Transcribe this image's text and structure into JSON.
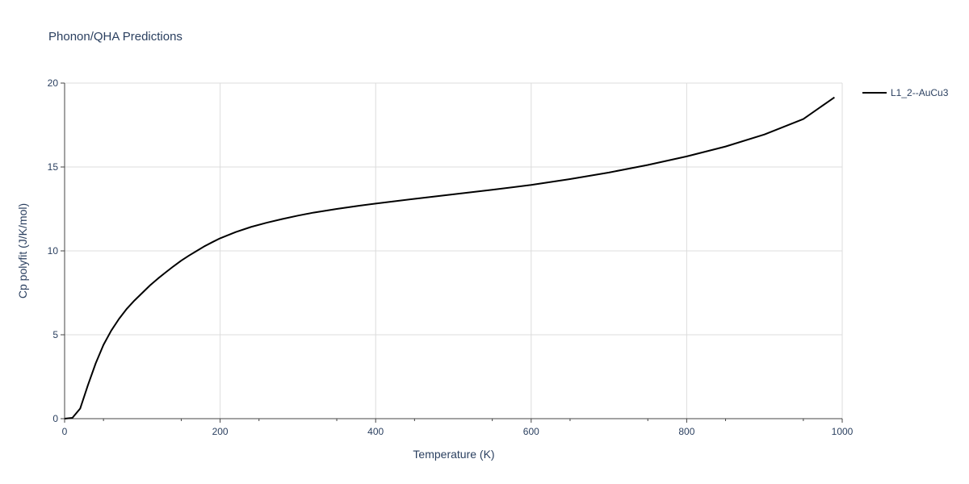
{
  "chart_data": {
    "type": "line",
    "title": "Phonon/QHA Predictions",
    "xlabel": "Temperature (K)",
    "ylabel": "Cp polyfit (J/K/mol)",
    "xlim": [
      0,
      1000
    ],
    "ylim": [
      0,
      20
    ],
    "x_ticks": [
      "0",
      "200",
      "400",
      "600",
      "800",
      "1000"
    ],
    "y_ticks": [
      "0",
      "5",
      "10",
      "15",
      "20"
    ],
    "grid": true,
    "legend_position": "top-right",
    "series": [
      {
        "name": "L1_2--AuCu3",
        "color": "#000000",
        "x": [
          0,
          10,
          20,
          30,
          40,
          50,
          60,
          70,
          80,
          90,
          100,
          110,
          120,
          130,
          140,
          150,
          160,
          170,
          180,
          190,
          200,
          220,
          240,
          260,
          280,
          300,
          320,
          350,
          380,
          400,
          450,
          500,
          550,
          600,
          650,
          700,
          750,
          800,
          850,
          900,
          950,
          990
        ],
        "y": [
          0,
          0.05,
          0.6,
          2.0,
          3.3,
          4.4,
          5.25,
          5.95,
          6.55,
          7.05,
          7.5,
          7.95,
          8.35,
          8.72,
          9.08,
          9.42,
          9.72,
          10.0,
          10.28,
          10.52,
          10.75,
          11.12,
          11.43,
          11.68,
          11.9,
          12.1,
          12.28,
          12.5,
          12.7,
          12.82,
          13.1,
          13.37,
          13.64,
          13.93,
          14.28,
          14.67,
          15.12,
          15.63,
          16.22,
          16.94,
          17.86,
          19.15
        ]
      }
    ]
  }
}
